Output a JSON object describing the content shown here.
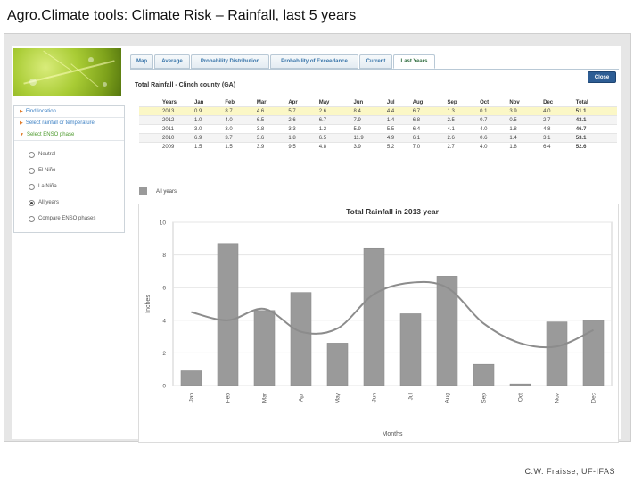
{
  "slide": {
    "title": "Agro.Climate tools: Climate Risk – Rainfall, last 5 years",
    "footer": "C.W. Fraisse, UF-IFAS"
  },
  "tabs": [
    {
      "label": "Map"
    },
    {
      "label": "Average"
    },
    {
      "label": "Probability Distribution"
    },
    {
      "label": "Probability of Exceedance"
    },
    {
      "label": "Current"
    },
    {
      "label": "Last Years"
    }
  ],
  "active_tab": "Last Years",
  "close_label": "Close",
  "sidebar": {
    "items": [
      {
        "label": "Find location"
      },
      {
        "label": "Select rainfall or temperature"
      },
      {
        "label": "Select ENSO phase"
      }
    ],
    "enso_options": [
      {
        "label": "Neutral",
        "selected": false
      },
      {
        "label": "El Niño",
        "selected": false
      },
      {
        "label": "La Niña",
        "selected": false
      },
      {
        "label": "All years",
        "selected": true
      },
      {
        "label": "Compare ENSO phases",
        "selected": false
      }
    ]
  },
  "table": {
    "title": "Total Rainfall - Clinch county (GA)",
    "headers": [
      "Years",
      "Jan",
      "Feb",
      "Mar",
      "Apr",
      "May",
      "Jun",
      "Jul",
      "Aug",
      "Sep",
      "Oct",
      "Nov",
      "Dec",
      "Total"
    ],
    "rows": [
      [
        "2013",
        "0.9",
        "8.7",
        "4.6",
        "5.7",
        "2.6",
        "8.4",
        "4.4",
        "6.7",
        "1.3",
        "0.1",
        "3.9",
        "4.0",
        "51.1"
      ],
      [
        "2012",
        "1.0",
        "4.0",
        "6.5",
        "2.6",
        "6.7",
        "7.9",
        "1.4",
        "6.8",
        "2.5",
        "0.7",
        "0.5",
        "2.7",
        "43.1"
      ],
      [
        "2011",
        "3.0",
        "3.0",
        "3.8",
        "3.3",
        "1.2",
        "5.9",
        "5.5",
        "6.4",
        "4.1",
        "4.0",
        "1.8",
        "4.8",
        "46.7"
      ],
      [
        "2010",
        "6.9",
        "3.7",
        "3.6",
        "1.8",
        "6.5",
        "11.9",
        "4.9",
        "6.1",
        "2.6",
        "0.6",
        "1.4",
        "3.1",
        "53.1"
      ],
      [
        "2009",
        "1.5",
        "1.5",
        "3.9",
        "9.5",
        "4.8",
        "3.9",
        "5.2",
        "7.0",
        "2.7",
        "4.0",
        "1.8",
        "6.4",
        "52.6"
      ]
    ]
  },
  "legend_label": "All years",
  "colors": {
    "bar": "#9a9a9a",
    "line": "#8c8c8c",
    "tab_text": "#3572a8",
    "close_btn": "#2d5d94",
    "highlight_row": "#fbf7c6"
  },
  "chart_data": {
    "type": "bar",
    "title": "Total Rainfall in 2013 year",
    "xlabel": "Months",
    "ylabel": "Inches",
    "ylim": [
      0,
      10
    ],
    "yticks": [
      0,
      2,
      4,
      6,
      8,
      10
    ],
    "categories": [
      "Jan",
      "Feb",
      "Mar",
      "Apr",
      "May",
      "Jun",
      "Jul",
      "Aug",
      "Sep",
      "Oct",
      "Nov",
      "Dec"
    ],
    "values": [
      0.9,
      8.7,
      4.6,
      5.7,
      2.6,
      8.4,
      4.4,
      6.7,
      1.3,
      0.1,
      3.9,
      4.0
    ],
    "line_values": [
      4.5,
      4.0,
      4.7,
      3.3,
      3.5,
      5.6,
      6.3,
      6.0,
      3.8,
      2.6,
      2.4,
      3.4
    ],
    "grid": true
  }
}
